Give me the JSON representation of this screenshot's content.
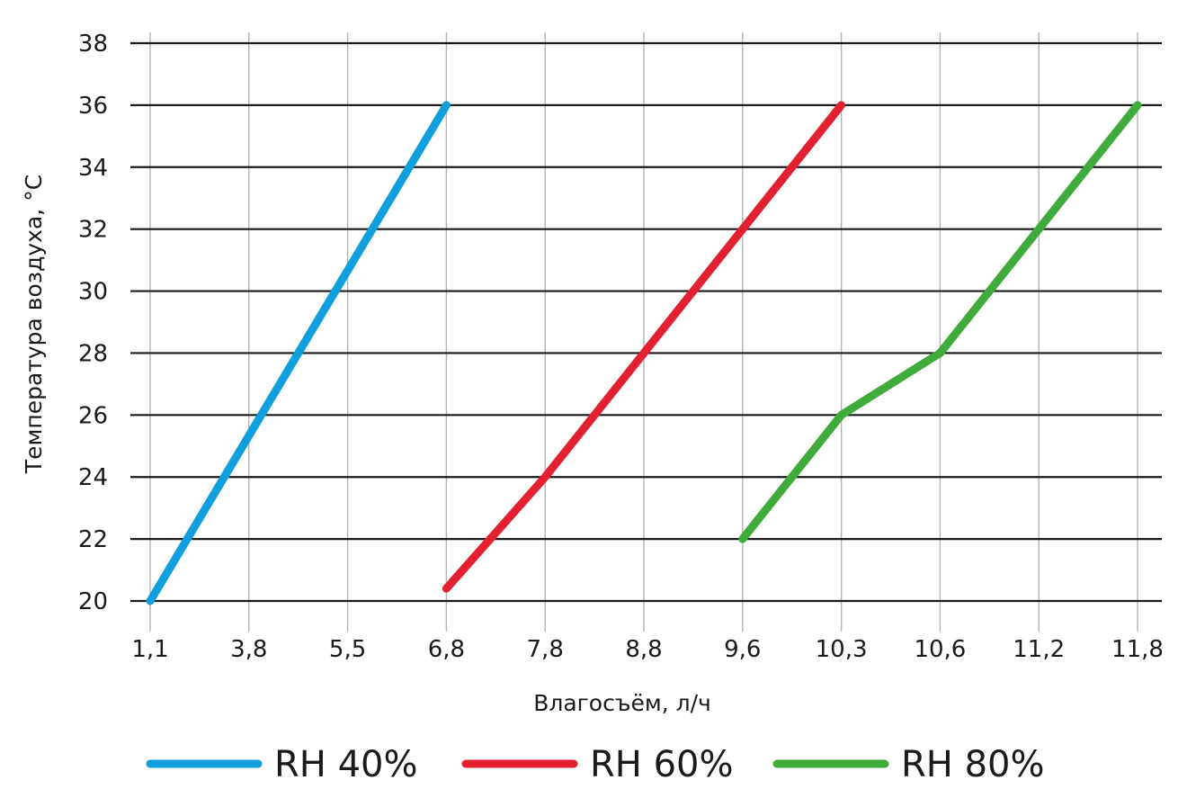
{
  "chart_data": {
    "type": "line",
    "xlabel": "Влагосъём, л/ч",
    "ylabel": "Температура воздуха, °С",
    "categories": [
      "1,1",
      "3,8",
      "5,5",
      "6,8",
      "7,8",
      "8,8",
      "9,6",
      "10,3",
      "10,6",
      "11,2",
      "11,8"
    ],
    "yticks": [
      "20",
      "22",
      "24",
      "26",
      "28",
      "30",
      "32",
      "34",
      "36",
      "38"
    ],
    "ylim": [
      20,
      38
    ],
    "grid": true,
    "legend_position": "bottom",
    "series": [
      {
        "name": "RH 40%",
        "color": "#0f9fdc",
        "points": [
          [
            1.1,
            20
          ],
          [
            6.8,
            36
          ]
        ]
      },
      {
        "name": "RH 60%",
        "color": "#e3202f",
        "points": [
          [
            6.8,
            20.4
          ],
          [
            7.8,
            24
          ],
          [
            8.8,
            28
          ],
          [
            9.6,
            32
          ],
          [
            10.3,
            36
          ]
        ]
      },
      {
        "name": "RH 80%",
        "color": "#3fab3a",
        "points": [
          [
            9.6,
            22
          ],
          [
            10.3,
            26
          ],
          [
            10.6,
            28
          ],
          [
            11.2,
            32
          ],
          [
            11.8,
            36
          ]
        ]
      }
    ]
  }
}
